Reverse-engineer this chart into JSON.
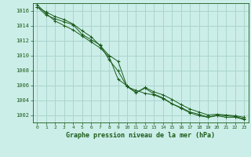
{
  "title": "Graphe pression niveau de la mer (hPa)",
  "background_color": "#cceee8",
  "grid_color": "#aad4ce",
  "line_color": "#1a5c1a",
  "xlim": [
    -0.5,
    23.5
  ],
  "ylim": [
    1001.0,
    1017.0
  ],
  "yticks": [
    1002,
    1004,
    1006,
    1008,
    1010,
    1012,
    1014,
    1016
  ],
  "xticks": [
    0,
    1,
    2,
    3,
    4,
    5,
    6,
    7,
    8,
    9,
    10,
    11,
    12,
    13,
    14,
    15,
    16,
    17,
    18,
    19,
    20,
    21,
    22,
    23
  ],
  "series": [
    [
      1016.5,
      1015.8,
      1015.2,
      1014.8,
      1014.2,
      1013.3,
      1012.5,
      1011.3,
      1010.0,
      1009.2,
      1005.8,
      1005.0,
      1005.7,
      1005.1,
      1004.7,
      1004.1,
      1003.4,
      1002.8,
      1002.4,
      1002.0,
      1002.1,
      1002.0,
      1001.9,
      1001.7
    ],
    [
      1016.5,
      1015.4,
      1014.9,
      1014.5,
      1014.1,
      1012.8,
      1012.1,
      1011.4,
      1009.4,
      1007.9,
      1005.8,
      1005.3,
      1004.9,
      1004.7,
      1004.2,
      1003.5,
      1002.9,
      1002.3,
      1001.9,
      1001.7,
      1002.0,
      1001.9,
      1001.8,
      1001.5
    ],
    [
      1016.8,
      1015.6,
      1014.6,
      1014.0,
      1013.4,
      1012.6,
      1011.8,
      1011.0,
      1009.8,
      1006.8,
      1005.9,
      1005.0,
      1005.6,
      1004.8,
      1004.3,
      1003.5,
      1003.0,
      1002.4,
      1002.1,
      1001.7,
      1001.9,
      1001.7,
      1001.7,
      1001.4
    ]
  ]
}
